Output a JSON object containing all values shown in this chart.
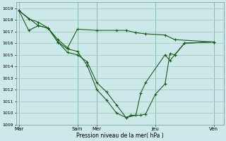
{
  "background_color": "#cce8e8",
  "grid_color": "#99ccbb",
  "line_color": "#1a5c1a",
  "ylim": [
    1009,
    1019.5
  ],
  "yticks": [
    1009,
    1010,
    1011,
    1012,
    1013,
    1014,
    1015,
    1016,
    1017,
    1018,
    1019
  ],
  "xlabel": "Pression niveau de la mer( hPa )",
  "day_labels": [
    "Mar",
    "Sam",
    "Mer",
    "Jeu",
    "Ven"
  ],
  "day_positions": [
    0,
    60,
    80,
    140,
    200
  ],
  "xlim": [
    -3,
    210
  ],
  "series1_x": [
    0,
    10,
    20,
    30,
    40,
    50,
    60,
    70,
    80,
    90,
    100,
    110,
    115,
    120,
    125,
    130,
    140,
    150,
    155,
    160,
    170,
    200
  ],
  "series1_y": [
    1018.8,
    1018.1,
    1017.8,
    1017.3,
    1016.1,
    1015.2,
    1015.0,
    1014.4,
    1012.6,
    1011.8,
    1010.7,
    1009.6,
    1009.8,
    1009.8,
    1009.8,
    1009.9,
    1011.6,
    1012.5,
    1015.1,
    1015.0,
    1016.0,
    1016.1
  ],
  "series2_x": [
    0,
    10,
    20,
    30,
    40,
    50,
    60,
    70,
    80,
    90,
    100,
    110,
    120,
    125,
    130,
    150,
    155,
    160,
    170,
    200
  ],
  "series2_y": [
    1018.8,
    1017.1,
    1017.5,
    1017.3,
    1016.1,
    1015.5,
    1015.3,
    1014.1,
    1012.0,
    1011.1,
    1010.0,
    1009.6,
    1009.8,
    1011.7,
    1012.6,
    1015.0,
    1014.5,
    1015.0,
    1016.0,
    1016.1
  ],
  "series3_x": [
    0,
    20,
    30,
    40,
    50,
    60,
    80,
    100,
    110,
    120,
    130,
    150,
    160,
    200
  ],
  "series3_y": [
    1018.8,
    1017.5,
    1017.3,
    1016.3,
    1015.6,
    1017.2,
    1017.1,
    1017.1,
    1017.1,
    1016.9,
    1016.8,
    1016.7,
    1016.3,
    1016.1
  ]
}
